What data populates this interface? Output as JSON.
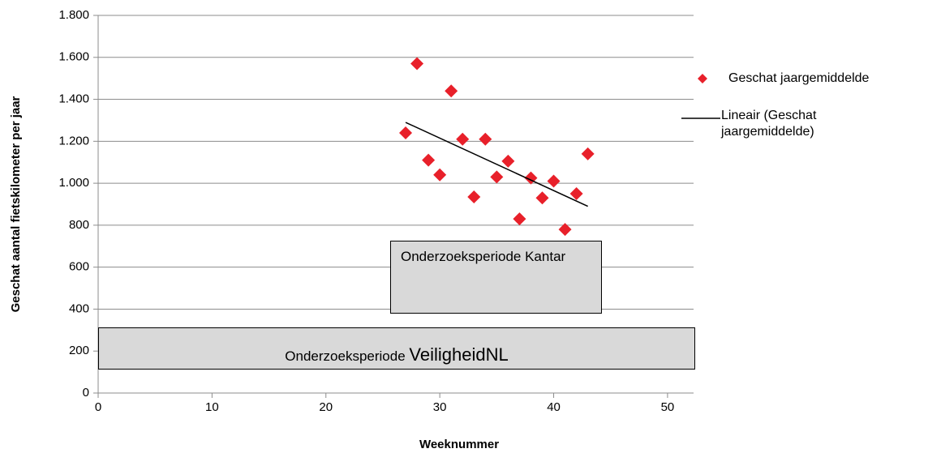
{
  "chart_data": {
    "type": "scatter",
    "x_label": "Weeknummer",
    "y_label": "Geschat aantal fietskilometer per jaar",
    "xlim": [
      0,
      52
    ],
    "xticks": [
      0,
      10,
      20,
      30,
      40,
      50
    ],
    "ylim": [
      0,
      1800
    ],
    "yticks": [
      0,
      200,
      400,
      600,
      800,
      {
        "value": 1000,
        "label": "1.000"
      },
      {
        "value": 1200,
        "label": "1.200"
      },
      {
        "value": 1400,
        "label": "1.400"
      },
      {
        "value": 1600,
        "label": "1.600"
      },
      {
        "value": 1800,
        "label": "1.800"
      }
    ],
    "grid": true,
    "series": [
      {
        "name": "Geschat jaargemiddelde",
        "color": "#e8202a",
        "x": [
          27,
          28,
          29,
          30,
          31,
          32,
          33,
          34,
          35,
          36,
          37,
          38,
          39,
          40,
          41,
          42,
          43
        ],
        "values": [
          1240,
          1570,
          1110,
          1040,
          1440,
          1210,
          935,
          1210,
          1030,
          1105,
          830,
          1025,
          930,
          1010,
          780,
          950,
          1140
        ]
      }
    ],
    "trendline": {
      "name": "Lineair (Geschat jaargemiddelde)",
      "color": "#000000",
      "x": [
        27,
        43
      ],
      "values": [
        1290,
        890
      ]
    },
    "annotations": [
      {
        "parts": [
          "Onderzoeksperiode Kantar"
        ]
      },
      {
        "parts": [
          "Onderzoeksperiode",
          "VeiligheidNL"
        ]
      }
    ]
  }
}
